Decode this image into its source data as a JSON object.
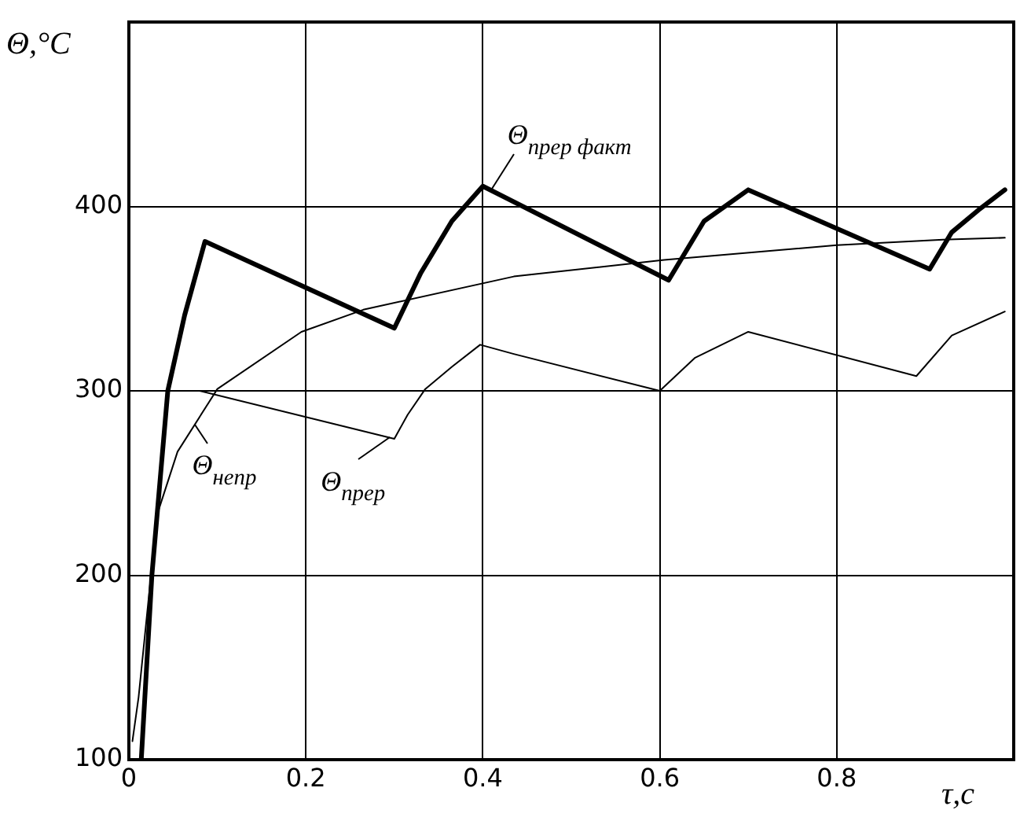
{
  "chart_data": {
    "type": "line",
    "xlabel": "τ,c",
    "ylabel": "Θ,°C",
    "xlim": [
      0,
      1
    ],
    "xticks": [
      0,
      0.2,
      0.4,
      0.6,
      0.8
    ],
    "ylim": [
      100,
      500
    ],
    "yticks": [
      100,
      200,
      300,
      400
    ],
    "grid": true,
    "legend": false,
    "marker": "none",
    "line_style": "solid",
    "series": [
      {
        "color": "#000000",
        "x": [
          0.014,
          0.026,
          0.044,
          0.063,
          0.086,
          0.3,
          0.33,
          0.365,
          0.4,
          0.61,
          0.65,
          0.7,
          0.905,
          0.93,
          0.96,
          0.99
        ],
        "values": [
          100,
          200,
          300,
          341,
          381,
          334,
          364,
          392,
          411,
          360,
          392,
          409,
          366,
          386,
          398,
          409
        ]
      },
      {
        "color": "#000000",
        "x": [
          0.014,
          0.026,
          0.045,
          0.08,
          0.3,
          0.315,
          0.335,
          0.365,
          0.397,
          0.435,
          0.6,
          0.64,
          0.7,
          0.89,
          0.93,
          0.99
        ],
        "values": [
          100,
          200,
          300,
          300,
          274,
          287,
          301,
          313,
          325,
          320,
          300,
          318,
          332,
          308,
          330,
          343
        ]
      },
      {
        "color": "#000000",
        "x": [
          0.004,
          0.011,
          0.032,
          0.055,
          0.1,
          0.195,
          0.265,
          0.435,
          0.605,
          0.8,
          0.92,
          0.99
        ],
        "values": [
          110,
          134,
          233,
          267,
          301,
          332,
          344,
          362,
          371,
          379,
          382,
          383
        ]
      }
    ],
    "annotations": [
      {
        "text": "Θ$_{прер факт}$",
        "x": 0.41,
        "y": 410
      },
      {
        "text": "Θ$_{непр}$",
        "x": 0.075,
        "y": 282
      },
      {
        "text": "Θ$_{прер}$",
        "x": 0.295,
        "y": 275
      }
    ]
  }
}
